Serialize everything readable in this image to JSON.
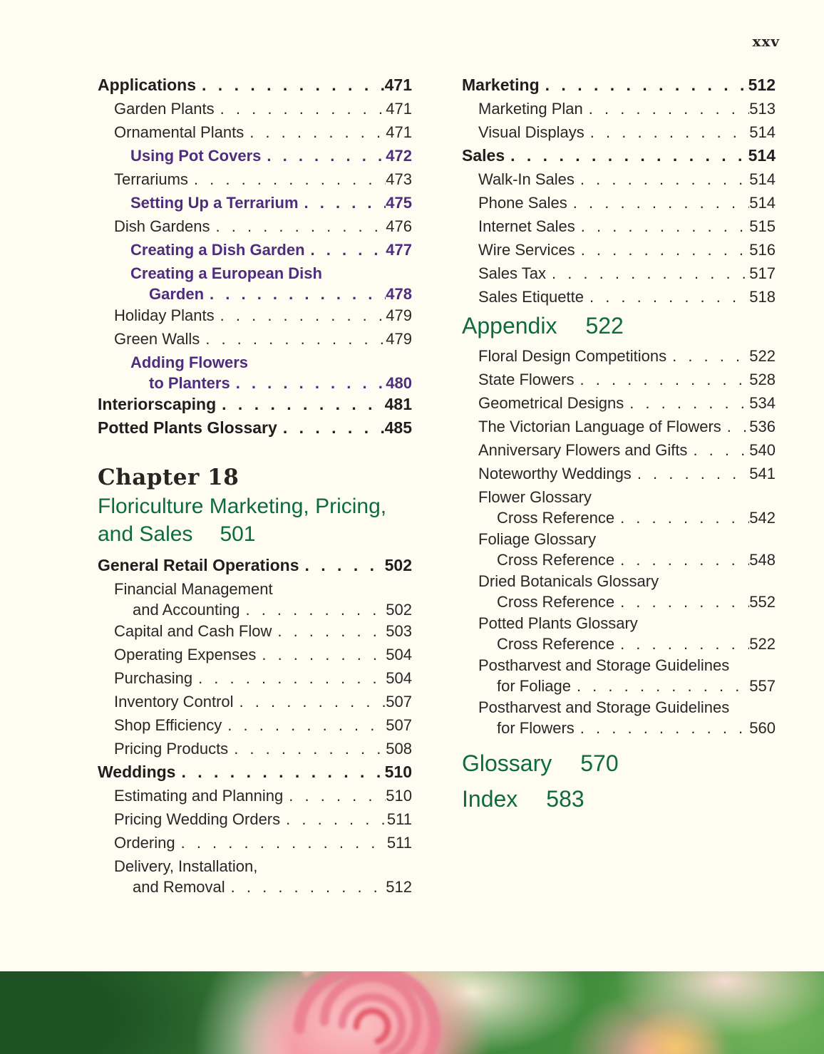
{
  "page": {
    "folio": "xxv",
    "background": "#FFFDF2"
  },
  "colors": {
    "ink": "#2A2627",
    "purple": "#4E2D7E",
    "green": "#0E6B41",
    "cream": "#FFFDF2"
  },
  "left_column": {
    "entries": [
      {
        "label": "Applications",
        "page": "471",
        "level": 1
      },
      {
        "label": "Garden Plants",
        "page": "471",
        "level": 2
      },
      {
        "label": "Ornamental Plants",
        "page": "471",
        "level": 2
      },
      {
        "label": "Using Pot Covers",
        "page": "472",
        "level": 3
      },
      {
        "label": "Terrariums",
        "page": "473",
        "level": 2
      },
      {
        "label": "Setting Up a Terrarium",
        "page": "475",
        "level": 3
      },
      {
        "label": "Dish Gardens",
        "page": "476",
        "level": 2
      },
      {
        "label": "Creating a Dish Garden",
        "page": "477",
        "level": 3
      },
      {
        "label": "Creating a European Dish",
        "label2": "Garden",
        "page": "478",
        "level": 3
      },
      {
        "label": "Holiday Plants",
        "page": "479",
        "level": 2
      },
      {
        "label": "Green Walls",
        "page": "479",
        "level": 2
      },
      {
        "label": "Adding Flowers",
        "label2": "to Planters",
        "page": "480",
        "level": 3
      },
      {
        "label": "Interiorscaping",
        "page": "481",
        "level": 1
      },
      {
        "label": "Potted Plants Glossary",
        "page": "485",
        "level": 1
      }
    ],
    "chapter": {
      "kicker": "Chapter 18",
      "title_line1": "Floriculture Marketing, Pricing,",
      "title_line2": "and Sales",
      "title_page": "501"
    },
    "chapter_entries": [
      {
        "label": "General Retail Operations",
        "page": "502",
        "level": 1
      },
      {
        "label": "Financial Management",
        "label2": "and Accounting",
        "page": "502",
        "level": 2
      },
      {
        "label": "Capital and Cash Flow",
        "page": "503",
        "level": 2
      },
      {
        "label": "Operating Expenses",
        "page": "504",
        "level": 2
      },
      {
        "label": "Purchasing",
        "page": "504",
        "level": 2
      },
      {
        "label": "Inventory Control",
        "page": "507",
        "level": 2
      },
      {
        "label": "Shop Efficiency",
        "page": "507",
        "level": 2
      },
      {
        "label": "Pricing Products",
        "page": "508",
        "level": 2
      },
      {
        "label": "Weddings",
        "page": "510",
        "level": 1
      },
      {
        "label": "Estimating and Planning",
        "page": "510",
        "level": 2
      },
      {
        "label": "Pricing Wedding Orders",
        "page": "511",
        "level": 2
      },
      {
        "label": "Ordering",
        "page": "511",
        "level": 2
      },
      {
        "label": "Delivery, Installation,",
        "label2": "and Removal",
        "page": "512",
        "level": 2
      }
    ]
  },
  "right_column": {
    "entries_top": [
      {
        "label": "Marketing",
        "page": "512",
        "level": 1
      },
      {
        "label": "Marketing Plan",
        "page": "513",
        "level": 2
      },
      {
        "label": "Visual Displays",
        "page": "514",
        "level": 2
      },
      {
        "label": "Sales",
        "page": "514",
        "level": 1
      },
      {
        "label": "Walk-In Sales",
        "page": "514",
        "level": 2
      },
      {
        "label": "Phone Sales",
        "page": "514",
        "level": 2
      },
      {
        "label": "Internet Sales",
        "page": "515",
        "level": 2
      },
      {
        "label": "Wire Services",
        "page": "516",
        "level": 2
      },
      {
        "label": "Sales Tax",
        "page": "517",
        "level": 2
      },
      {
        "label": "Sales Etiquette",
        "page": "518",
        "level": 2
      }
    ],
    "appendix_heading": {
      "label": "Appendix",
      "page": "522"
    },
    "appendix_entries": [
      {
        "label": "Floral Design Competitions",
        "page": "522",
        "level": 2
      },
      {
        "label": "State Flowers",
        "page": "528",
        "level": 2
      },
      {
        "label": "Geometrical Designs",
        "page": "534",
        "level": 2
      },
      {
        "label": "The Victorian Language of Flowers",
        "page": "536",
        "level": 2
      },
      {
        "label": "Anniversary Flowers and Gifts",
        "page": "540",
        "level": 2
      },
      {
        "label": "Noteworthy Weddings",
        "page": "541",
        "level": 2
      },
      {
        "label": "Flower Glossary",
        "label2": "Cross Reference",
        "page": "542",
        "level": 2
      },
      {
        "label": "Foliage Glossary",
        "label2": "Cross Reference",
        "page": "548",
        "level": 2
      },
      {
        "label": "Dried Botanicals Glossary",
        "label2": "Cross Reference",
        "page": "552",
        "level": 2
      },
      {
        "label": "Potted Plants Glossary",
        "label2": "Cross Reference",
        "page": "522",
        "level": 2
      },
      {
        "label": "Postharvest and Storage Guidelines",
        "label2": "for Foliage",
        "page": "557",
        "level": 2
      },
      {
        "label": "Postharvest and Storage Guidelines",
        "label2": "for Flowers",
        "page": "560",
        "level": 2
      }
    ],
    "glossary_heading": {
      "label": "Glossary",
      "page": "570"
    },
    "index_heading": {
      "label": "Index",
      "page": "583"
    }
  },
  "footer_photo": {
    "description": "Close-up photo of pink roses with green foliage"
  }
}
